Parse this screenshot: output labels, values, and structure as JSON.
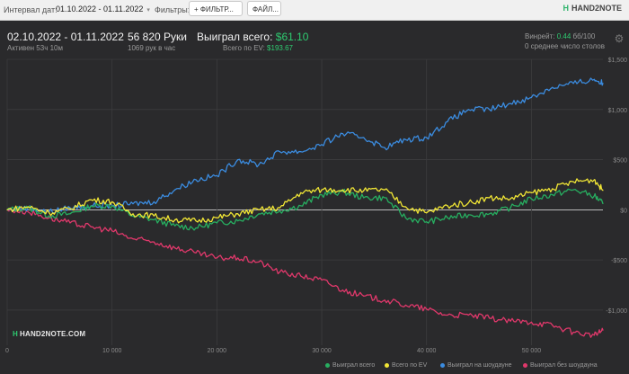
{
  "filters": {
    "interval_label": "Интервал дат:",
    "date_range": "01.10.2022 - 01.11.2022",
    "filters_label": "Фильтры:",
    "filter_button": "ФИЛЬТР...",
    "file_button": "ФАЙЛ...",
    "plus_icon": "+",
    "chevron": "▾"
  },
  "brand": {
    "mark": "H",
    "name": "HAND2NOTE"
  },
  "summary": {
    "date_range": "02.10.2022 - 01.11.2022",
    "active": "Активен 53ч 10м",
    "hands": "56 820 Руки",
    "hands_per_hour": "1069 рук в час",
    "won_total_label": "Выиграл всего:",
    "won_total_value": "$61.10",
    "ev_total_label": "Всего по EV:",
    "ev_total_value": "$193.67",
    "winrate_label": "Винрейт:",
    "winrate_value": "0.44",
    "winrate_unit": "бб/100",
    "avg_tables": "0 среднее число столов"
  },
  "watermark": {
    "mark": "H",
    "text": "HAND2NOTE.COM"
  },
  "colors": {
    "won": "#27ae60",
    "ev": "#f1e635",
    "showdown": "#3b8ce0",
    "non_showdown": "#e0386b",
    "grid": "#3c3c3e",
    "zero_line": "#e8e8e8"
  },
  "chart_data": {
    "type": "line",
    "x_axis": {
      "min": 0,
      "max": 56820,
      "ticks": [
        0,
        10000,
        20000,
        30000,
        40000,
        50000
      ],
      "tick_labels": [
        "0",
        "10 000",
        "20 000",
        "30 000",
        "40 000",
        "50 000"
      ]
    },
    "y_axis": {
      "min": -1350,
      "max": 1500,
      "ticks": [
        1500,
        1000,
        500,
        0,
        -500,
        -1000
      ],
      "tick_labels": [
        "$1,500",
        "$1,000",
        "$500",
        "$0",
        "-$500",
        "-$1,000"
      ]
    },
    "grid": true,
    "legend_position": "bottom-right",
    "x": [
      0,
      2000,
      4000,
      6000,
      8000,
      10000,
      12000,
      14000,
      16000,
      18000,
      20000,
      22000,
      24000,
      26000,
      28000,
      30000,
      32000,
      34000,
      36000,
      38000,
      40000,
      42000,
      44000,
      46000,
      48000,
      50000,
      52000,
      54000,
      56000,
      56820
    ],
    "series": [
      {
        "name": "Выиграл всего",
        "values": [
          0,
          20,
          -60,
          -40,
          40,
          40,
          -60,
          -100,
          -160,
          -180,
          -130,
          -110,
          -40,
          -10,
          40,
          150,
          180,
          120,
          120,
          -80,
          -120,
          -80,
          -50,
          -40,
          20,
          110,
          150,
          200,
          140,
          61
        ]
      },
      {
        "name": "Всего по EV",
        "values": [
          0,
          30,
          -30,
          10,
          100,
          80,
          -40,
          -60,
          -100,
          -110,
          -80,
          -40,
          0,
          20,
          170,
          200,
          200,
          190,
          200,
          30,
          -30,
          40,
          70,
          120,
          110,
          170,
          210,
          280,
          300,
          194
        ]
      },
      {
        "name": "Выиграл на шоудауне",
        "values": [
          0,
          20,
          -20,
          20,
          40,
          40,
          60,
          80,
          200,
          300,
          340,
          500,
          450,
          580,
          580,
          650,
          760,
          720,
          620,
          700,
          720,
          880,
          1000,
          1000,
          1060,
          1120,
          1220,
          1260,
          1300,
          1260
        ]
      },
      {
        "name": "Выиграл без шоудауна",
        "values": [
          0,
          -20,
          -80,
          -130,
          -170,
          -210,
          -290,
          -320,
          -380,
          -430,
          -480,
          -480,
          -520,
          -620,
          -660,
          -700,
          -800,
          -860,
          -900,
          -950,
          -990,
          -1050,
          -1050,
          -1080,
          -1110,
          -1120,
          -1150,
          -1220,
          -1250,
          -1200
        ]
      }
    ]
  },
  "legend": [
    {
      "label": "Выиграл всего",
      "color": "#27ae60"
    },
    {
      "label": "Всего по EV",
      "color": "#f1e635"
    },
    {
      "label": "Выиграл на шоудауне",
      "color": "#3b8ce0"
    },
    {
      "label": "Выиграл без шоудауна",
      "color": "#e0386b"
    }
  ]
}
